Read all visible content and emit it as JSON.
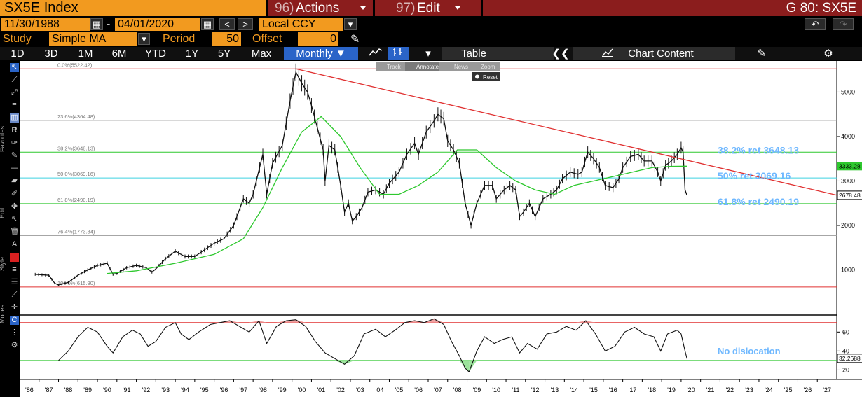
{
  "header": {
    "ticker": "SX5E Index",
    "actions_num": "96)",
    "actions_label": "Actions",
    "edit_num": "97)",
    "edit_label": "Edit",
    "g_code": "G 80: SX5E"
  },
  "controls": {
    "start_date": "11/30/1988",
    "dash": "-",
    "end_date": "04/01/2020",
    "currency": "Local CCY",
    "study_label": "Study",
    "study_value": "Simple MA",
    "period_label": "Period",
    "period_value": "50",
    "offset_label": "Offset",
    "offset_value": "0"
  },
  "tabs": {
    "periods": [
      "1D",
      "3D",
      "1M",
      "6M",
      "YTD",
      "1Y",
      "5Y",
      "Max"
    ],
    "frequency": "Monthly",
    "table": "Table",
    "chart_content": "Chart Content"
  },
  "chart_toolbar": {
    "track": "Track",
    "annotate": "Annotate",
    "news": "News",
    "zoom": "Zoom",
    "reset": "Reset"
  },
  "side_labels": {
    "favorites": "Favorites",
    "edit": "Edit",
    "style": "Style",
    "modes": "Modes"
  },
  "colors": {
    "orange": "#f29a1f",
    "maroon": "#8b1d1d",
    "price": "#ffffff",
    "ma": "#2ec82e",
    "trend": "#e03030",
    "fib_text": "#6fb8ff"
  },
  "chart_data": {
    "type": "line",
    "fib_levels": [
      {
        "label": "0.0%(5522.42)",
        "value": 5522.42,
        "color": "#e03030"
      },
      {
        "label": "23.6%(4364.48)",
        "value": 4364.48,
        "color": "#999999"
      },
      {
        "label": "38.2%(3648.13)",
        "value": 3648.13,
        "color": "#2ec82e"
      },
      {
        "label": "50.0%(3069.16)",
        "value": 3069.16,
        "color": "#3fd2e0"
      },
      {
        "label": "61.8%(2490.19)",
        "value": 2490.19,
        "color": "#2ec82e"
      },
      {
        "label": "76.4%(1773.84)",
        "value": 1773.84,
        "color": "#999999"
      },
      {
        "label": "100.0%(615.90)",
        "value": 615.9,
        "color": "#e03030"
      }
    ],
    "annotations": [
      {
        "text": "38.2% ret 3648.13",
        "value": 3648.13
      },
      {
        "text": "50% ret 3069.16",
        "value": 3069.16
      },
      {
        "text": "61.8% ret 2490.19",
        "value": 2490.19
      }
    ],
    "price_label": "2678.48",
    "ma_label": "3333.28",
    "ylim": [
      0,
      5700
    ],
    "yticks": [
      1000,
      2000,
      3000,
      4000,
      5000
    ],
    "xticks": [
      "'86",
      "'87",
      "'88",
      "'89",
      "'90",
      "'91",
      "'92",
      "'93",
      "'94",
      "'95",
      "'96",
      "'97",
      "'98",
      "'99",
      "'00",
      "'01",
      "'02",
      "'03",
      "'04",
      "'05",
      "'06",
      "'07",
      "'08",
      "'09",
      "'10",
      "'11",
      "'12",
      "'13",
      "'14",
      "'15",
      "'16",
      "'17",
      "'18",
      "'19",
      "'20",
      "'21",
      "'22",
      "'23",
      "'24",
      "'25",
      "'26",
      "'27"
    ],
    "xlim": [
      1986,
      2028
    ],
    "trendline": [
      [
        2000.2,
        5522.42
      ],
      [
        2028,
        2680
      ]
    ],
    "price_series": [
      [
        1986.8,
        900
      ],
      [
        1987.5,
        880
      ],
      [
        1987.8,
        700
      ],
      [
        1988.0,
        660
      ],
      [
        1988.5,
        720
      ],
      [
        1989.0,
        880
      ],
      [
        1989.5,
        1000
      ],
      [
        1990.0,
        1100
      ],
      [
        1990.5,
        1150
      ],
      [
        1990.8,
        900
      ],
      [
        1991.0,
        920
      ],
      [
        1991.5,
        1050
      ],
      [
        1992.0,
        1100
      ],
      [
        1992.5,
        1050
      ],
      [
        1992.8,
        950
      ],
      [
        1993.0,
        1020
      ],
      [
        1993.5,
        1250
      ],
      [
        1994.0,
        1420
      ],
      [
        1994.5,
        1300
      ],
      [
        1995.0,
        1300
      ],
      [
        1995.5,
        1450
      ],
      [
        1996.0,
        1600
      ],
      [
        1996.5,
        1700
      ],
      [
        1997.0,
        2000
      ],
      [
        1997.5,
        2600
      ],
      [
        1997.8,
        2500
      ],
      [
        1998.0,
        2700
      ],
      [
        1998.5,
        3600
      ],
      [
        1998.7,
        2700
      ],
      [
        1999.0,
        3400
      ],
      [
        1999.5,
        3800
      ],
      [
        1999.9,
        4800
      ],
      [
        2000.2,
        5450
      ],
      [
        2000.5,
        5200
      ],
      [
        2000.8,
        5000
      ],
      [
        2001.0,
        4700
      ],
      [
        2001.3,
        4200
      ],
      [
        2001.6,
        3700
      ],
      [
        2001.7,
        3000
      ],
      [
        2001.9,
        3800
      ],
      [
        2002.2,
        3700
      ],
      [
        2002.5,
        2900
      ],
      [
        2002.7,
        2300
      ],
      [
        2002.9,
        2500
      ],
      [
        2003.1,
        2100
      ],
      [
        2003.3,
        2200
      ],
      [
        2003.6,
        2400
      ],
      [
        2003.9,
        2750
      ],
      [
        2004.3,
        2800
      ],
      [
        2004.7,
        2700
      ],
      [
        2005.0,
        2950
      ],
      [
        2005.5,
        3200
      ],
      [
        2005.9,
        3600
      ],
      [
        2006.3,
        3850
      ],
      [
        2006.5,
        3600
      ],
      [
        2006.9,
        4100
      ],
      [
        2007.3,
        4350
      ],
      [
        2007.5,
        4500
      ],
      [
        2007.8,
        4400
      ],
      [
        2008.0,
        3900
      ],
      [
        2008.3,
        3700
      ],
      [
        2008.6,
        3400
      ],
      [
        2008.9,
        2500
      ],
      [
        2009.2,
        2000
      ],
      [
        2009.5,
        2500
      ],
      [
        2009.9,
        2900
      ],
      [
        2010.3,
        2900
      ],
      [
        2010.5,
        2600
      ],
      [
        2010.9,
        2800
      ],
      [
        2011.2,
        2900
      ],
      [
        2011.5,
        2800
      ],
      [
        2011.7,
        2200
      ],
      [
        2011.9,
        2300
      ],
      [
        2012.2,
        2500
      ],
      [
        2012.5,
        2200
      ],
      [
        2012.9,
        2600
      ],
      [
        2013.3,
        2700
      ],
      [
        2013.6,
        2800
      ],
      [
        2013.9,
        3050
      ],
      [
        2014.3,
        3200
      ],
      [
        2014.7,
        3150
      ],
      [
        2014.9,
        3200
      ],
      [
        2015.2,
        3650
      ],
      [
        2015.5,
        3500
      ],
      [
        2015.8,
        3300
      ],
      [
        2016.1,
        2900
      ],
      [
        2016.5,
        2850
      ],
      [
        2016.8,
        3050
      ],
      [
        2017.0,
        3300
      ],
      [
        2017.4,
        3550
      ],
      [
        2017.8,
        3600
      ],
      [
        2018.1,
        3450
      ],
      [
        2018.5,
        3450
      ],
      [
        2018.8,
        3200
      ],
      [
        2018.95,
        3000
      ],
      [
        2019.2,
        3350
      ],
      [
        2019.5,
        3450
      ],
      [
        2019.8,
        3600
      ],
      [
        2020.0,
        3750
      ],
      [
        2020.1,
        3650
      ],
      [
        2020.2,
        2800
      ],
      [
        2020.3,
        2678
      ]
    ],
    "ma_series": [
      [
        1990.5,
        920
      ],
      [
        1992.0,
        980
      ],
      [
        1994.0,
        1150
      ],
      [
        1996.0,
        1350
      ],
      [
        1997.5,
        1700
      ],
      [
        1998.5,
        2400
      ],
      [
        1999.5,
        3300
      ],
      [
        2000.5,
        4100
      ],
      [
        2001.5,
        4450
      ],
      [
        2002.5,
        4000
      ],
      [
        2003.5,
        3300
      ],
      [
        2004.5,
        2700
      ],
      [
        2005.5,
        2700
      ],
      [
        2006.5,
        2900
      ],
      [
        2007.5,
        3200
      ],
      [
        2008.5,
        3700
      ],
      [
        2009.5,
        3700
      ],
      [
        2010.5,
        3300
      ],
      [
        2011.5,
        3000
      ],
      [
        2012.5,
        2800
      ],
      [
        2013.5,
        2700
      ],
      [
        2014.5,
        2900
      ],
      [
        2015.5,
        3000
      ],
      [
        2016.5,
        3100
      ],
      [
        2017.5,
        3200
      ],
      [
        2018.5,
        3300
      ],
      [
        2019.5,
        3330
      ],
      [
        2020.3,
        3333
      ]
    ],
    "indicator": {
      "label": "32.2688",
      "note": "No dislocation",
      "yticks": [
        20,
        40,
        60
      ],
      "ylim": [
        10,
        75
      ],
      "upper": 70,
      "lower": 30,
      "series": [
        [
          1988.0,
          30
        ],
        [
          1988.5,
          40
        ],
        [
          1989.0,
          55
        ],
        [
          1989.5,
          65
        ],
        [
          1990.0,
          60
        ],
        [
          1990.5,
          45
        ],
        [
          1990.8,
          38
        ],
        [
          1991.3,
          55
        ],
        [
          1991.8,
          62
        ],
        [
          1992.2,
          58
        ],
        [
          1992.6,
          45
        ],
        [
          1993.0,
          50
        ],
        [
          1993.5,
          65
        ],
        [
          1994.0,
          70
        ],
        [
          1994.3,
          58
        ],
        [
          1994.7,
          52
        ],
        [
          1995.2,
          60
        ],
        [
          1995.8,
          68
        ],
        [
          1996.3,
          70
        ],
        [
          1996.8,
          72
        ],
        [
          1997.3,
          66
        ],
        [
          1997.8,
          60
        ],
        [
          1998.3,
          72
        ],
        [
          1998.7,
          48
        ],
        [
          1999.2,
          66
        ],
        [
          1999.7,
          72
        ],
        [
          2000.2,
          73
        ],
        [
          2000.7,
          66
        ],
        [
          2001.2,
          50
        ],
        [
          2001.7,
          38
        ],
        [
          2002.2,
          32
        ],
        [
          2002.7,
          26
        ],
        [
          2003.2,
          35
        ],
        [
          2003.7,
          58
        ],
        [
          2004.3,
          63
        ],
        [
          2004.8,
          55
        ],
        [
          2005.3,
          62
        ],
        [
          2005.8,
          70
        ],
        [
          2006.3,
          72
        ],
        [
          2006.8,
          70
        ],
        [
          2007.3,
          74
        ],
        [
          2007.8,
          68
        ],
        [
          2008.2,
          50
        ],
        [
          2008.6,
          35
        ],
        [
          2008.9,
          22
        ],
        [
          2009.1,
          18
        ],
        [
          2009.5,
          40
        ],
        [
          2009.9,
          55
        ],
        [
          2010.4,
          48
        ],
        [
          2010.8,
          52
        ],
        [
          2011.3,
          55
        ],
        [
          2011.7,
          38
        ],
        [
          2012.1,
          48
        ],
        [
          2012.6,
          42
        ],
        [
          2013.1,
          58
        ],
        [
          2013.6,
          60
        ],
        [
          2014.1,
          66
        ],
        [
          2014.6,
          62
        ],
        [
          2015.1,
          72
        ],
        [
          2015.6,
          58
        ],
        [
          2016.1,
          40
        ],
        [
          2016.6,
          45
        ],
        [
          2017.1,
          60
        ],
        [
          2017.6,
          65
        ],
        [
          2018.1,
          58
        ],
        [
          2018.6,
          55
        ],
        [
          2018.95,
          40
        ],
        [
          2019.3,
          58
        ],
        [
          2019.8,
          62
        ],
        [
          2020.0,
          58
        ],
        [
          2020.2,
          40
        ],
        [
          2020.3,
          32
        ]
      ]
    }
  }
}
